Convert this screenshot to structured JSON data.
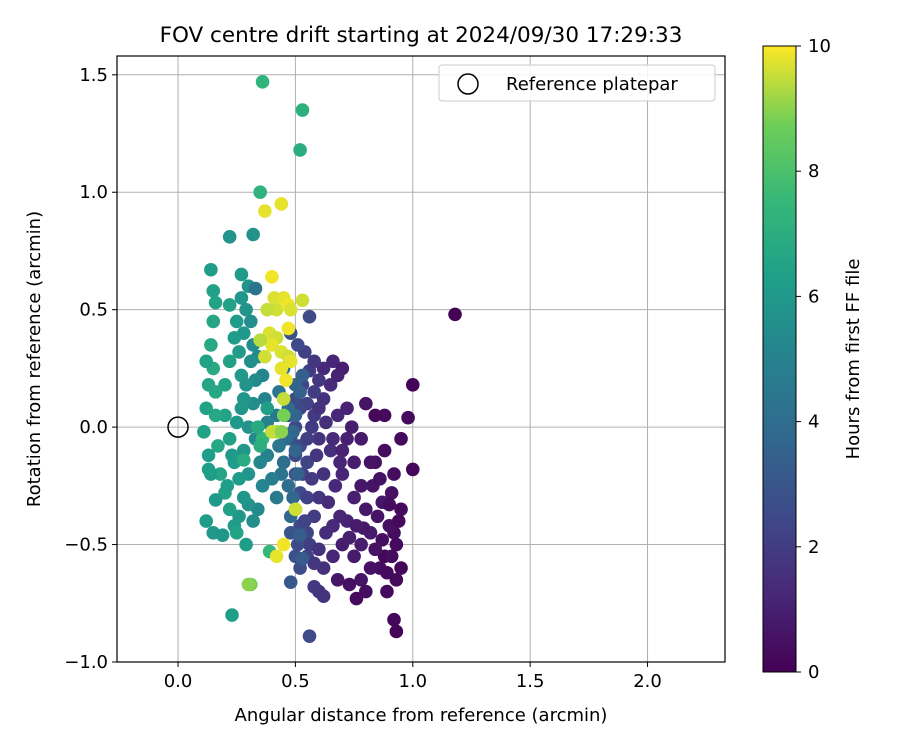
{
  "chart_data": {
    "type": "scatter",
    "title": "FOV centre drift starting at 2024/09/30 17:29:33",
    "xlabel": "Angular distance from reference (arcmin)",
    "ylabel": "Rotation from reference (arcmin)",
    "xlim": [
      -0.26,
      2.33
    ],
    "ylim": [
      -1.0,
      1.58
    ],
    "xticks": [
      0.0,
      0.5,
      1.0,
      1.5,
      2.0
    ],
    "xtick_labels": [
      "0.0",
      "0.5",
      "1.0",
      "1.5",
      "2.0"
    ],
    "yticks": [
      -1.0,
      -0.5,
      0.0,
      0.5,
      1.0,
      1.5
    ],
    "ytick_labels": [
      "−1.0",
      "−0.5",
      "0.0",
      "0.5",
      "1.0",
      "1.5"
    ],
    "grid": true,
    "legend": {
      "position": "top-right",
      "entries": [
        "Reference platepar"
      ]
    },
    "colorbar": {
      "label": "Hours from first FF file",
      "range": [
        0,
        10
      ],
      "ticks": [
        0,
        2,
        4,
        6,
        8,
        10
      ],
      "tick_labels": [
        "0",
        "2",
        "4",
        "6",
        "8",
        "10"
      ],
      "colormap": "viridis"
    },
    "reference_point": {
      "x": 0.0,
      "y": 0.0,
      "label": "Reference platepar"
    },
    "points": [
      [
        0.95,
        -0.35,
        0.3
      ],
      [
        0.92,
        -0.45,
        0.4
      ],
      [
        0.88,
        -0.55,
        0.2
      ],
      [
        0.9,
        -0.42,
        0.5
      ],
      [
        0.85,
        -0.38,
        0.6
      ],
      [
        0.93,
        -0.5,
        0.3
      ],
      [
        0.87,
        -0.32,
        0.7
      ],
      [
        0.91,
        -0.28,
        0.5
      ],
      [
        0.82,
        -0.45,
        0.8
      ],
      [
        0.86,
        -0.6,
        0.4
      ],
      [
        0.89,
        -0.7,
        0.3
      ],
      [
        0.92,
        -0.82,
        0.2
      ],
      [
        0.93,
        -0.87,
        0.1
      ],
      [
        0.78,
        -0.5,
        0.9
      ],
      [
        0.8,
        -0.35,
        0.7
      ],
      [
        0.83,
        -0.25,
        0.6
      ],
      [
        0.84,
        -0.15,
        0.5
      ],
      [
        0.88,
        -0.1,
        0.4
      ],
      [
        0.88,
        0.05,
        0.3
      ],
      [
        0.84,
        0.05,
        0.2
      ],
      [
        0.92,
        -0.2,
        0.4
      ],
      [
        0.95,
        -0.6,
        0.2
      ],
      [
        0.75,
        -0.3,
        1.0
      ],
      [
        0.72,
        -0.4,
        1.1
      ],
      [
        0.7,
        -0.2,
        1.2
      ],
      [
        0.75,
        -0.15,
        0.9
      ],
      [
        0.78,
        -0.05,
        0.8
      ],
      [
        0.72,
        -0.05,
        1.0
      ],
      [
        0.68,
        0.05,
        1.3
      ],
      [
        0.72,
        0.08,
        1.1
      ],
      [
        0.75,
        -0.55,
        0.8
      ],
      [
        0.78,
        -0.65,
        0.6
      ],
      [
        0.82,
        -0.6,
        0.5
      ],
      [
        0.8,
        -0.7,
        0.4
      ],
      [
        0.76,
        -0.73,
        0.3
      ],
      [
        0.73,
        -0.67,
        0.5
      ],
      [
        0.68,
        -0.65,
        0.7
      ],
      [
        0.7,
        -0.5,
        0.9
      ],
      [
        0.66,
        -0.55,
        1.2
      ],
      [
        0.62,
        -0.6,
        1.5
      ],
      [
        0.6,
        -0.7,
        1.6
      ],
      [
        0.62,
        -0.72,
        1.7
      ],
      [
        0.58,
        -0.68,
        1.8
      ],
      [
        0.55,
        -0.55,
        2.2
      ],
      [
        0.55,
        -0.45,
        2.3
      ],
      [
        0.58,
        -0.38,
        2.0
      ],
      [
        0.6,
        -0.3,
        1.8
      ],
      [
        0.62,
        -0.2,
        1.6
      ],
      [
        0.65,
        -0.1,
        1.5
      ],
      [
        0.6,
        -0.05,
        1.7
      ],
      [
        0.58,
        0.05,
        1.9
      ],
      [
        0.62,
        0.12,
        1.6
      ],
      [
        0.65,
        0.18,
        1.4
      ],
      [
        0.62,
        0.25,
        1.3
      ],
      [
        0.66,
        0.28,
        1.2
      ],
      [
        0.7,
        0.25,
        0.9
      ],
      [
        0.68,
        0.22,
        1.1
      ],
      [
        0.6,
        0.2,
        1.8
      ],
      [
        0.58,
        0.15,
        2.0
      ],
      [
        0.55,
        0.1,
        2.2
      ],
      [
        0.52,
        0.08,
        2.4
      ],
      [
        0.5,
        0.0,
        2.6
      ],
      [
        0.52,
        -0.08,
        2.5
      ],
      [
        0.55,
        -0.15,
        2.3
      ],
      [
        0.5,
        -0.2,
        2.7
      ],
      [
        0.52,
        -0.28,
        2.5
      ],
      [
        0.55,
        -0.3,
        2.2
      ],
      [
        0.5,
        -0.35,
        2.8
      ],
      [
        0.52,
        -0.42,
        2.6
      ],
      [
        0.56,
        -0.5,
        2.1
      ],
      [
        0.48,
        -0.45,
        3.0
      ],
      [
        0.5,
        -0.55,
        2.8
      ],
      [
        0.52,
        -0.6,
        2.6
      ],
      [
        0.48,
        -0.66,
        3.1
      ],
      [
        0.56,
        -0.89,
        2.5
      ],
      [
        1.0,
        0.18,
        0.1
      ],
      [
        1.18,
        0.48,
        0.05
      ],
      [
        1.0,
        -0.18,
        0.2
      ],
      [
        0.98,
        0.04,
        0.3
      ],
      [
        0.95,
        -0.05,
        0.3
      ],
      [
        0.8,
        0.1,
        0.6
      ],
      [
        0.74,
        0.0,
        0.9
      ],
      [
        0.7,
        -0.1,
        1.1
      ],
      [
        0.78,
        -0.25,
        0.7
      ],
      [
        0.82,
        -0.15,
        0.6
      ],
      [
        0.86,
        -0.22,
        0.5
      ],
      [
        0.9,
        -0.33,
        0.4
      ],
      [
        0.94,
        -0.4,
        0.3
      ],
      [
        0.91,
        -0.55,
        0.35
      ],
      [
        0.87,
        -0.48,
        0.45
      ],
      [
        0.84,
        -0.52,
        0.55
      ],
      [
        0.89,
        -0.62,
        0.3
      ],
      [
        0.93,
        -0.65,
        0.25
      ],
      [
        0.79,
        -0.43,
        0.75
      ],
      [
        0.76,
        -0.42,
        0.85
      ],
      [
        0.73,
        -0.47,
        0.95
      ],
      [
        0.69,
        -0.38,
        1.15
      ],
      [
        0.66,
        -0.42,
        1.3
      ],
      [
        0.64,
        -0.32,
        1.4
      ],
      [
        0.67,
        -0.25,
        1.25
      ],
      [
        0.69,
        -0.15,
        1.2
      ],
      [
        0.66,
        -0.05,
        1.35
      ],
      [
        0.63,
        0.02,
        1.5
      ],
      [
        0.6,
        0.08,
        1.65
      ],
      [
        0.57,
        0.0,
        1.95
      ],
      [
        0.55,
        -0.05,
        2.1
      ],
      [
        0.53,
        -0.2,
        2.3
      ],
      [
        0.57,
        -0.22,
        1.9
      ],
      [
        0.59,
        -0.12,
        1.8
      ],
      [
        0.63,
        -0.45,
        1.45
      ],
      [
        0.6,
        -0.52,
        1.6
      ],
      [
        0.58,
        -0.58,
        1.85
      ],
      [
        0.54,
        -0.4,
        2.25
      ],
      [
        0.51,
        -0.5,
        2.55
      ],
      [
        0.5,
        -0.12,
        2.6
      ],
      [
        0.48,
        -0.05,
        2.75
      ],
      [
        0.47,
        0.05,
        2.85
      ],
      [
        0.5,
        0.12,
        2.6
      ],
      [
        0.53,
        0.18,
        2.35
      ],
      [
        0.56,
        0.24,
        2.0
      ],
      [
        0.58,
        0.28,
        1.85
      ],
      [
        0.54,
        0.32,
        2.2
      ],
      [
        0.51,
        0.35,
        2.5
      ],
      [
        0.48,
        0.4,
        2.85
      ],
      [
        0.56,
        0.47,
        2.6
      ],
      [
        0.53,
        0.22,
        3.4
      ],
      [
        0.52,
        0.15,
        3.5
      ],
      [
        0.5,
        0.05,
        3.6
      ],
      [
        0.49,
        -0.02,
        3.7
      ],
      [
        0.5,
        -0.1,
        3.6
      ],
      [
        0.51,
        -0.2,
        3.5
      ],
      [
        0.49,
        -0.3,
        3.7
      ],
      [
        0.48,
        -0.38,
        3.8
      ],
      [
        0.52,
        -0.46,
        3.3
      ],
      [
        0.53,
        -0.56,
        3.2
      ],
      [
        0.47,
        -0.25,
        4.0
      ],
      [
        0.45,
        -0.15,
        4.1
      ],
      [
        0.46,
        -0.05,
        4.0
      ],
      [
        0.47,
        0.08,
        3.9
      ],
      [
        0.5,
        0.18,
        3.6
      ],
      [
        0.45,
        0.25,
        4.2
      ],
      [
        0.43,
        0.15,
        4.4
      ],
      [
        0.42,
        0.05,
        4.5
      ],
      [
        0.43,
        -0.08,
        4.4
      ],
      [
        0.44,
        -0.2,
        4.3
      ],
      [
        0.42,
        -0.3,
        4.6
      ],
      [
        0.4,
        -0.22,
        4.8
      ],
      [
        0.38,
        -0.12,
        4.9
      ],
      [
        0.38,
        0.02,
        4.9
      ],
      [
        0.37,
        0.12,
        5.0
      ],
      [
        0.36,
        0.22,
        5.1
      ],
      [
        0.34,
        0.3,
        5.3
      ],
      [
        0.33,
        0.2,
        5.4
      ],
      [
        0.32,
        0.1,
        5.5
      ],
      [
        0.33,
        -0.05,
        5.4
      ],
      [
        0.35,
        -0.15,
        5.2
      ],
      [
        0.36,
        -0.25,
        5.1
      ],
      [
        0.34,
        -0.35,
        5.3
      ],
      [
        0.32,
        -0.4,
        5.5
      ],
      [
        0.3,
        -0.33,
        5.7
      ],
      [
        0.3,
        -0.2,
        5.8
      ],
      [
        0.28,
        -0.1,
        5.9
      ],
      [
        0.3,
        0.0,
        5.7
      ],
      [
        0.28,
        0.12,
        5.9
      ],
      [
        0.27,
        0.22,
        6.0
      ],
      [
        0.26,
        0.32,
        6.1
      ],
      [
        0.28,
        0.4,
        5.9
      ],
      [
        0.25,
        0.45,
        6.2
      ],
      [
        0.22,
        0.52,
        6.4
      ],
      [
        0.24,
        0.38,
        6.2
      ],
      [
        0.22,
        0.28,
        6.4
      ],
      [
        0.2,
        0.18,
        6.5
      ],
      [
        0.2,
        0.05,
        6.5
      ],
      [
        0.22,
        -0.05,
        6.4
      ],
      [
        0.24,
        -0.15,
        6.2
      ],
      [
        0.26,
        -0.22,
        6.1
      ],
      [
        0.28,
        -0.3,
        5.9
      ],
      [
        0.26,
        -0.38,
        6.0
      ],
      [
        0.24,
        -0.42,
        6.2
      ],
      [
        0.22,
        -0.35,
        6.4
      ],
      [
        0.2,
        -0.28,
        6.5
      ],
      [
        0.18,
        -0.2,
        6.6
      ],
      [
        0.17,
        -0.08,
        6.7
      ],
      [
        0.16,
        0.05,
        6.7
      ],
      [
        0.16,
        0.15,
        6.7
      ],
      [
        0.15,
        0.25,
        6.8
      ],
      [
        0.14,
        0.35,
        6.7
      ],
      [
        0.15,
        0.45,
        6.6
      ],
      [
        0.16,
        0.53,
        6.5
      ],
      [
        0.15,
        0.58,
        6.4
      ],
      [
        0.14,
        0.67,
        6.2
      ],
      [
        0.12,
        0.28,
        6.5
      ],
      [
        0.13,
        0.18,
        6.6
      ],
      [
        0.12,
        0.08,
        6.5
      ],
      [
        0.11,
        -0.02,
        6.4
      ],
      [
        0.13,
        -0.12,
        6.3
      ],
      [
        0.14,
        -0.2,
        6.2
      ],
      [
        0.13,
        -0.18,
        6.3
      ],
      [
        0.12,
        -0.4,
        6.2
      ],
      [
        0.15,
        -0.45,
        6.0
      ],
      [
        0.19,
        -0.46,
        5.9
      ],
      [
        0.16,
        -0.31,
        6.0
      ],
      [
        0.21,
        -0.25,
        6.3
      ],
      [
        0.23,
        -0.12,
        6.1
      ],
      [
        0.25,
        0.02,
        6.0
      ],
      [
        0.27,
        0.08,
        5.9
      ],
      [
        0.29,
        0.18,
        5.8
      ],
      [
        0.31,
        0.28,
        5.6
      ],
      [
        0.32,
        0.35,
        5.5
      ],
      [
        0.31,
        0.45,
        5.6
      ],
      [
        0.29,
        0.5,
        5.8
      ],
      [
        0.27,
        0.55,
        5.9
      ],
      [
        0.3,
        0.6,
        5.8
      ],
      [
        0.27,
        0.65,
        6.1
      ],
      [
        0.22,
        0.81,
        5.8
      ],
      [
        0.32,
        0.82,
        5.7
      ],
      [
        0.35,
        1.0,
        7.2
      ],
      [
        0.36,
        1.47,
        7.3
      ],
      [
        0.53,
        1.35,
        7.1
      ],
      [
        0.52,
        1.18,
        7.0
      ],
      [
        0.33,
        0.59,
        4.3
      ],
      [
        0.23,
        -0.8,
        6.3
      ],
      [
        0.31,
        -0.67,
        8.8
      ],
      [
        0.3,
        -0.67,
        9.0
      ],
      [
        0.28,
        -0.14,
        6.9
      ],
      [
        0.39,
        -0.53,
        7.5
      ],
      [
        0.36,
        -0.05,
        7.4
      ],
      [
        0.35,
        -0.08,
        7.0
      ],
      [
        0.34,
        0.0,
        6.8
      ],
      [
        0.38,
        0.08,
        6.3
      ],
      [
        0.37,
        0.92,
        9.8
      ],
      [
        0.44,
        0.95,
        9.8
      ],
      [
        0.4,
        0.64,
        9.9
      ],
      [
        0.41,
        0.55,
        9.7
      ],
      [
        0.42,
        0.5,
        9.6
      ],
      [
        0.45,
        0.55,
        9.8
      ],
      [
        0.47,
        0.52,
        9.9
      ],
      [
        0.48,
        0.5,
        9.7
      ],
      [
        0.53,
        0.54,
        9.6
      ],
      [
        0.38,
        0.5,
        9.5
      ],
      [
        0.39,
        0.4,
        9.7
      ],
      [
        0.42,
        0.38,
        9.6
      ],
      [
        0.4,
        0.35,
        9.8
      ],
      [
        0.44,
        0.32,
        9.7
      ],
      [
        0.47,
        0.3,
        9.6
      ],
      [
        0.44,
        0.25,
        9.8
      ],
      [
        0.46,
        0.2,
        9.9
      ],
      [
        0.48,
        0.28,
        9.8
      ],
      [
        0.45,
        0.12,
        9.5
      ],
      [
        0.47,
        0.42,
        9.9
      ],
      [
        0.37,
        0.3,
        9.6
      ],
      [
        0.35,
        0.37,
        9.4
      ],
      [
        0.45,
        0.05,
        8.8
      ],
      [
        0.42,
        -0.02,
        9.3
      ],
      [
        0.4,
        -0.02,
        9.5
      ],
      [
        0.44,
        -0.02,
        9.0
      ],
      [
        0.5,
        -0.35,
        9.6
      ],
      [
        0.42,
        -0.55,
        9.8
      ],
      [
        0.45,
        -0.5,
        9.9
      ],
      [
        0.25,
        -0.45,
        6.5
      ],
      [
        0.29,
        -0.5,
        6.2
      ]
    ]
  }
}
